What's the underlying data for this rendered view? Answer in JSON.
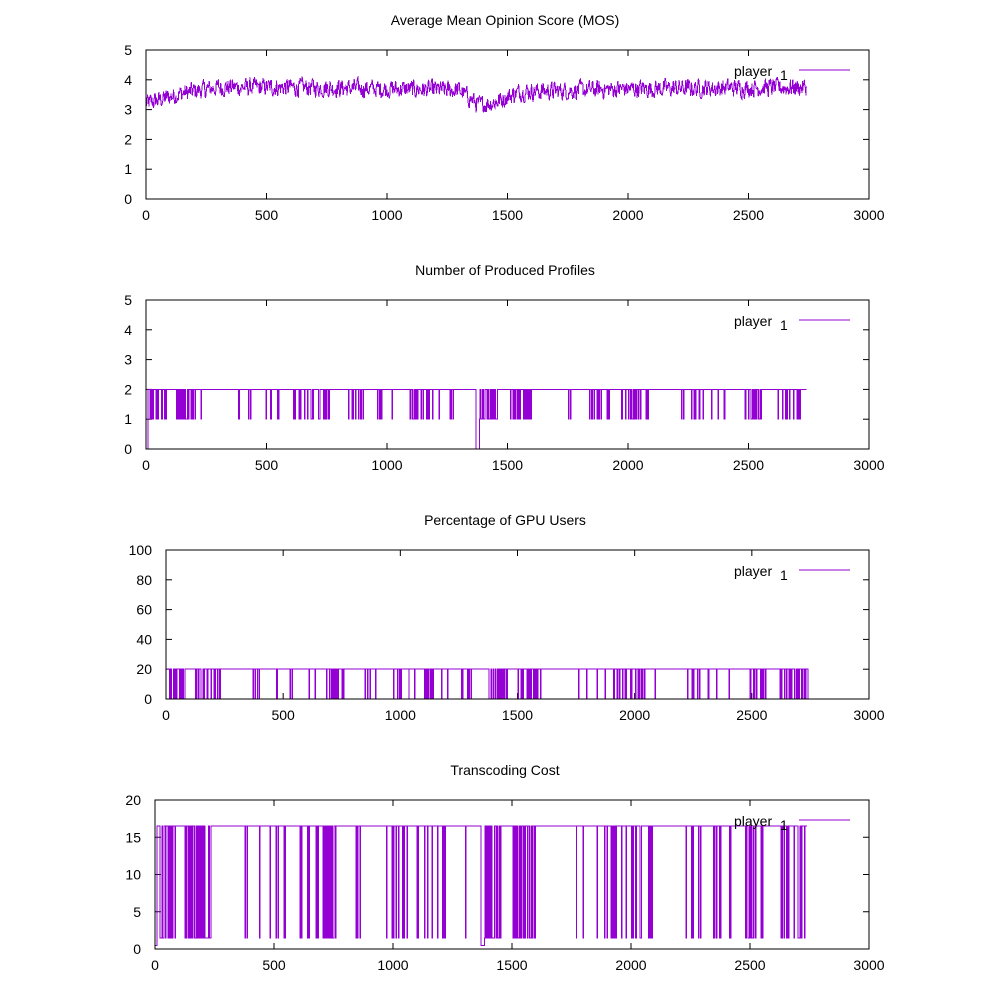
{
  "chart_data": [
    {
      "type": "line",
      "title": "Average Mean Opinion Score (MOS)",
      "xlabel": "",
      "ylabel": "",
      "xlim": [
        0,
        3000
      ],
      "ylim": [
        0,
        5
      ],
      "xticks": [
        0,
        500,
        1000,
        1500,
        2000,
        2500,
        3000
      ],
      "yticks": [
        0,
        1,
        2,
        3,
        4,
        5
      ],
      "grid": false,
      "legend_position": "top-right",
      "series": [
        {
          "name": "player",
          "name_subscript": "1",
          "color": "#9400D3",
          "x_range": [
            0,
            2740
          ],
          "mode": "noisy",
          "profile": [
            [
              0,
              3.2
            ],
            [
              150,
              3.55
            ],
            [
              300,
              3.75
            ],
            [
              600,
              3.75
            ],
            [
              1000,
              3.7
            ],
            [
              1300,
              3.65
            ],
            [
              1380,
              3.15
            ],
            [
              1450,
              3.25
            ],
            [
              1550,
              3.6
            ],
            [
              2000,
              3.7
            ],
            [
              2740,
              3.75
            ]
          ],
          "range": [
            2.9,
            4.2
          ]
        }
      ]
    },
    {
      "type": "line",
      "title": "Number of Produced Profiles",
      "xlabel": "",
      "ylabel": "",
      "xlim": [
        0,
        3000
      ],
      "ylim": [
        0,
        5
      ],
      "xticks": [
        0,
        500,
        1000,
        1500,
        2000,
        2500,
        3000
      ],
      "yticks": [
        0,
        1,
        2,
        3,
        4,
        5
      ],
      "grid": false,
      "legend_position": "top-right",
      "series": [
        {
          "name": "player",
          "name_subscript": "1",
          "color": "#9400D3",
          "x_range": [
            0,
            2740
          ],
          "mode": "step",
          "high": 2,
          "low": 1,
          "dips": [
            [
              0,
              6,
              0
            ],
            [
              1370,
              1382,
              0
            ]
          ],
          "bursts": [
            [
              15,
              85,
              0.5
            ],
            [
              125,
              235,
              0.4
            ],
            [
              365,
              440,
              0.1
            ],
            [
              470,
              560,
              0.12
            ],
            [
              590,
              680,
              0.1
            ],
            [
              680,
              760,
              0.3
            ],
            [
              840,
              900,
              0.15
            ],
            [
              960,
              1060,
              0.12
            ],
            [
              1095,
              1135,
              0.4
            ],
            [
              1140,
              1220,
              0.15
            ],
            [
              1260,
              1310,
              0.12
            ],
            [
              1375,
              1460,
              0.55
            ],
            [
              1500,
              1600,
              0.4
            ],
            [
              1740,
              1800,
              0.12
            ],
            [
              1840,
              1990,
              0.15
            ],
            [
              2000,
              2090,
              0.2
            ],
            [
              2220,
              2320,
              0.12
            ],
            [
              2340,
              2420,
              0.12
            ],
            [
              2480,
              2560,
              0.25
            ],
            [
              2620,
              2670,
              0.15
            ],
            [
              2680,
              2740,
              0.25
            ]
          ]
        }
      ]
    },
    {
      "type": "line",
      "title": "Percentage of GPU Users",
      "xlabel": "",
      "ylabel": "",
      "xlim": [
        0,
        3000
      ],
      "ylim": [
        0,
        100
      ],
      "xticks": [
        0,
        500,
        1000,
        1500,
        2000,
        2500,
        3000
      ],
      "yticks": [
        0,
        20,
        40,
        60,
        80,
        100
      ],
      "grid": false,
      "legend_position": "top-right",
      "series": [
        {
          "name": "player",
          "name_subscript": "1",
          "color": "#9400D3",
          "x_range": [
            0,
            2740
          ],
          "mode": "step",
          "high": 20,
          "low": 0,
          "dips": [],
          "bursts": [
            [
              15,
              85,
              0.5
            ],
            [
              125,
              235,
              0.4
            ],
            [
              365,
              440,
              0.1
            ],
            [
              470,
              560,
              0.12
            ],
            [
              590,
              680,
              0.1
            ],
            [
              680,
              760,
              0.3
            ],
            [
              840,
              900,
              0.15
            ],
            [
              960,
              1060,
              0.12
            ],
            [
              1095,
              1135,
              0.4
            ],
            [
              1140,
              1220,
              0.15
            ],
            [
              1260,
              1310,
              0.12
            ],
            [
              1375,
              1460,
              0.55
            ],
            [
              1500,
              1600,
              0.4
            ],
            [
              1740,
              1800,
              0.12
            ],
            [
              1840,
              1990,
              0.15
            ],
            [
              2000,
              2090,
              0.2
            ],
            [
              2220,
              2320,
              0.12
            ],
            [
              2340,
              2420,
              0.12
            ],
            [
              2480,
              2560,
              0.25
            ],
            [
              2620,
              2670,
              0.15
            ],
            [
              2680,
              2740,
              0.25
            ]
          ]
        }
      ]
    },
    {
      "type": "line",
      "title": "Transcoding Cost",
      "xlabel": "",
      "ylabel": "",
      "xlim": [
        0,
        3000
      ],
      "ylim": [
        0,
        20
      ],
      "xticks": [
        0,
        500,
        1000,
        1500,
        2000,
        2500,
        3000
      ],
      "yticks": [
        0,
        5,
        10,
        15,
        20
      ],
      "grid": false,
      "legend_position": "top-right",
      "series": [
        {
          "name": "player",
          "name_subscript": "1",
          "color": "#9400D3",
          "x_range": [
            0,
            2740
          ],
          "mode": "step",
          "high": 16.5,
          "low": 1.5,
          "dips": [
            [
              0,
              6,
              0.5
            ],
            [
              1370,
              1382,
              0.5
            ]
          ],
          "bursts": [
            [
              15,
              85,
              0.5
            ],
            [
              125,
              235,
              0.4
            ],
            [
              365,
              440,
              0.1
            ],
            [
              470,
              560,
              0.12
            ],
            [
              590,
              680,
              0.1
            ],
            [
              680,
              760,
              0.3
            ],
            [
              840,
              900,
              0.15
            ],
            [
              960,
              1060,
              0.12
            ],
            [
              1095,
              1135,
              0.4
            ],
            [
              1140,
              1220,
              0.15
            ],
            [
              1260,
              1310,
              0.12
            ],
            [
              1375,
              1460,
              0.55
            ],
            [
              1500,
              1600,
              0.4
            ],
            [
              1740,
              1800,
              0.12
            ],
            [
              1840,
              1990,
              0.15
            ],
            [
              2000,
              2090,
              0.2
            ],
            [
              2220,
              2320,
              0.12
            ],
            [
              2340,
              2420,
              0.12
            ],
            [
              2480,
              2560,
              0.25
            ],
            [
              2620,
              2670,
              0.15
            ],
            [
              2680,
              2740,
              0.25
            ]
          ]
        }
      ]
    }
  ]
}
